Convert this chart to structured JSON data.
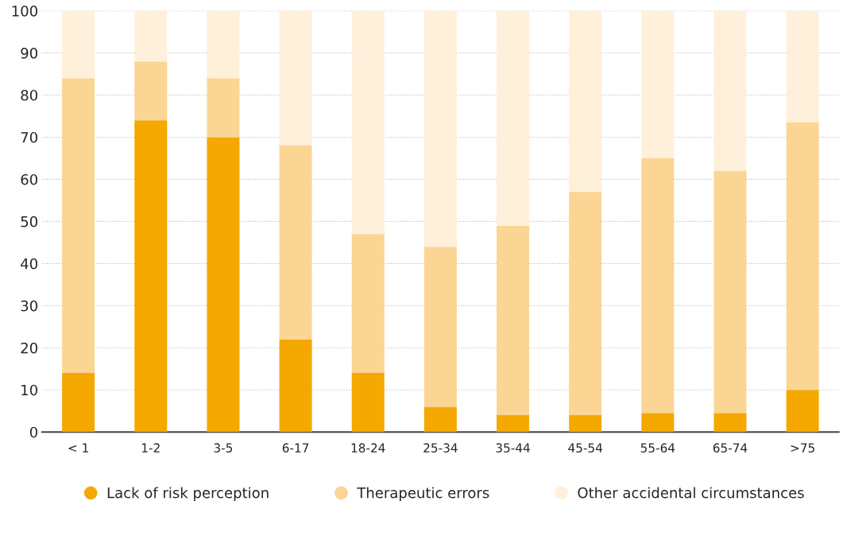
{
  "chart_data": {
    "type": "bar",
    "stacked": true,
    "categories": [
      "< 1",
      "1-2",
      "3-5",
      "6-17",
      "18-24",
      "25-34",
      "35-44",
      "45-54",
      "55-64",
      "65-74",
      ">75"
    ],
    "series": [
      {
        "name": "Lack of risk perception",
        "color": "#f5a800",
        "values": [
          14,
          74,
          70,
          22,
          14,
          6,
          4,
          4,
          4.5,
          4.5,
          10
        ]
      },
      {
        "name": "Therapeutic errors",
        "color": "#fbd593",
        "values": [
          70,
          14,
          14,
          46,
          33,
          38,
          45,
          53,
          60.5,
          57.5,
          63.5
        ]
      },
      {
        "name": "Other accidental circumstances",
        "color": "#fef0db",
        "values": [
          16,
          12,
          16,
          32,
          53,
          56,
          51,
          43,
          35,
          38,
          26.5
        ]
      }
    ],
    "ylim": [
      0,
      100
    ],
    "yticks": [
      0,
      10,
      20,
      30,
      40,
      50,
      60,
      70,
      80,
      90,
      100
    ],
    "grid": "y",
    "legend": "bottom",
    "marker": "circle"
  }
}
